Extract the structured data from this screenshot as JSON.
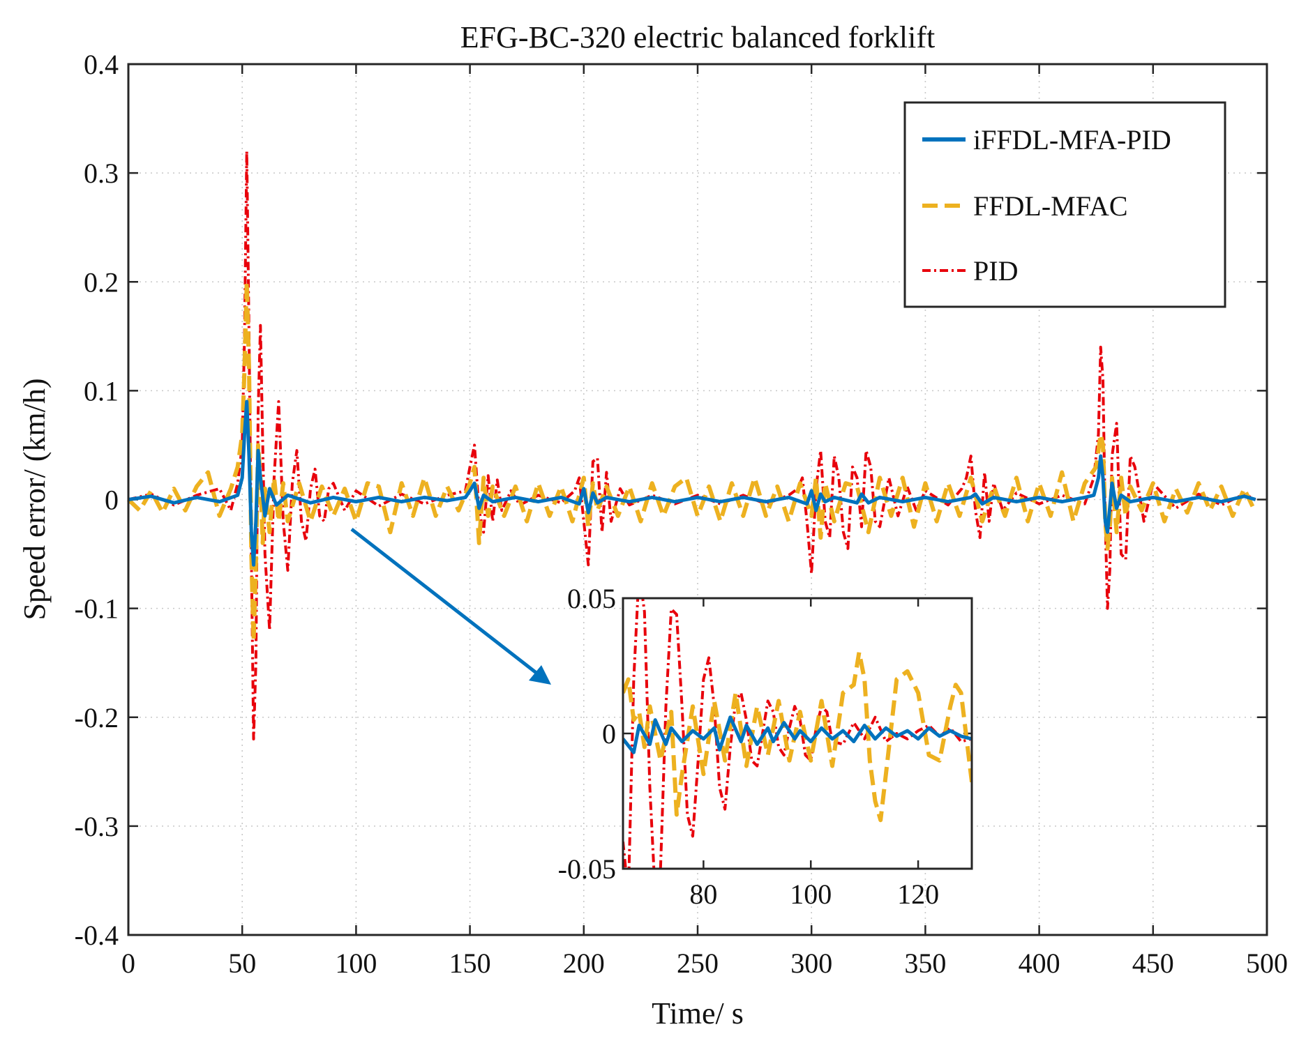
{
  "chart_data": {
    "type": "line",
    "title": "EFG-BC-320 electric balanced forklift",
    "xlabel": "Time/ s",
    "ylabel": "Speed error/ (km/h)",
    "xlim": [
      0,
      500
    ],
    "ylim": [
      -0.4,
      0.4
    ],
    "xticks": [
      0,
      50,
      100,
      150,
      200,
      250,
      300,
      350,
      400,
      450,
      500
    ],
    "xtick_labels": [
      "0",
      "50",
      "100",
      "150",
      "200",
      "250",
      "300",
      "350",
      "400",
      "450",
      "500"
    ],
    "yticks": [
      0.4,
      0.3,
      0.2,
      0.1,
      0,
      -0.1,
      -0.2,
      -0.3,
      -0.4
    ],
    "ytick_labels": [
      "0.4",
      "0.3",
      "0.2",
      "0.1",
      "0",
      "-0.1",
      "-0.2",
      "-0.3",
      "-0.4"
    ],
    "grid": true,
    "legend_position": "top-right",
    "series": [
      {
        "name": "iFFDL-MFA-PID",
        "color": "#0072BD",
        "style": "solid",
        "x": [
          0,
          10,
          20,
          30,
          40,
          48,
          50,
          51,
          52,
          53,
          54,
          55,
          56,
          57,
          58,
          60,
          62,
          65,
          70,
          80,
          90,
          100,
          110,
          120,
          130,
          140,
          148,
          150,
          152,
          154,
          156,
          160,
          170,
          180,
          190,
          198,
          200,
          202,
          204,
          206,
          210,
          220,
          230,
          240,
          250,
          260,
          270,
          280,
          290,
          298,
          300,
          302,
          304,
          306,
          310,
          320,
          322,
          325,
          330,
          340,
          350,
          360,
          370,
          372,
          375,
          380,
          390,
          400,
          410,
          420,
          424,
          426,
          427,
          428,
          429,
          430,
          432,
          434,
          436,
          440,
          450,
          460,
          470,
          480,
          490,
          495
        ],
        "y": [
          0,
          0.003,
          -0.003,
          0.002,
          -0.002,
          0.004,
          0.02,
          0.06,
          0.09,
          0.04,
          -0.03,
          -0.06,
          -0.02,
          0.045,
          0.02,
          -0.015,
          0.01,
          -0.005,
          0.004,
          -0.003,
          0.002,
          -0.002,
          0.002,
          -0.002,
          0.002,
          -0.001,
          0.002,
          0.008,
          0.015,
          -0.008,
          0.004,
          -0.002,
          0.002,
          -0.002,
          0.002,
          -0.004,
          0.01,
          -0.012,
          0.006,
          -0.003,
          0.002,
          -0.002,
          0.002,
          -0.002,
          0.002,
          -0.002,
          0.002,
          -0.002,
          0.002,
          -0.004,
          0.008,
          -0.01,
          0.005,
          -0.002,
          0.002,
          -0.003,
          0.005,
          -0.003,
          0.002,
          -0.002,
          0.002,
          -0.002,
          0.002,
          0.005,
          -0.004,
          0.002,
          -0.002,
          0.002,
          -0.002,
          0.002,
          0.004,
          0.02,
          0.04,
          0.02,
          -0.02,
          -0.03,
          0.015,
          -0.008,
          0.004,
          -0.002,
          0.002,
          -0.002,
          0.002,
          -0.002,
          0.003,
          0
        ]
      },
      {
        "name": "FFDL-MFAC",
        "color": "#EDB120",
        "style": "dashed",
        "x": [
          0,
          5,
          10,
          15,
          20,
          25,
          30,
          35,
          40,
          45,
          48,
          50,
          51,
          52,
          53,
          54,
          55,
          56,
          57,
          58,
          59,
          60,
          62,
          64,
          66,
          68,
          70,
          75,
          80,
          85,
          90,
          95,
          100,
          105,
          110,
          115,
          120,
          125,
          130,
          135,
          140,
          145,
          150,
          152,
          154,
          156,
          158,
          160,
          165,
          170,
          175,
          180,
          185,
          190,
          195,
          200,
          202,
          204,
          206,
          210,
          215,
          220,
          225,
          230,
          235,
          240,
          245,
          250,
          255,
          260,
          265,
          270,
          275,
          280,
          285,
          290,
          295,
          300,
          302,
          304,
          306,
          310,
          315,
          320,
          325,
          330,
          335,
          340,
          345,
          350,
          355,
          360,
          365,
          370,
          375,
          380,
          385,
          390,
          395,
          400,
          405,
          410,
          415,
          420,
          425,
          427,
          428,
          429,
          430,
          431,
          432,
          434,
          436,
          438,
          440,
          445,
          450,
          455,
          460,
          465,
          470,
          475,
          480,
          485,
          490,
          495
        ],
        "y": [
          0,
          -0.01,
          0.008,
          -0.012,
          0.01,
          -0.01,
          0.012,
          0.025,
          -0.015,
          0.01,
          0.03,
          0.06,
          0.12,
          0.2,
          0.12,
          -0.05,
          -0.13,
          -0.06,
          0.05,
          0.02,
          -0.04,
          0.01,
          -0.03,
          0.02,
          -0.02,
          0.015,
          -0.02,
          0.015,
          -0.02,
          0.012,
          -0.015,
          0.01,
          -0.02,
          0.015,
          0.012,
          -0.03,
          0.015,
          -0.015,
          0.02,
          -0.015,
          0.012,
          -0.01,
          0.015,
          0.03,
          -0.04,
          0.02,
          -0.015,
          0.012,
          -0.015,
          0.012,
          -0.02,
          0.015,
          -0.015,
          0.012,
          -0.02,
          0.02,
          -0.025,
          0.015,
          -0.01,
          0.012,
          -0.015,
          0.012,
          -0.02,
          0.015,
          -0.015,
          0.012,
          0.02,
          -0.015,
          0.012,
          -0.02,
          0.015,
          -0.015,
          0.02,
          -0.015,
          0.012,
          -0.02,
          0.015,
          -0.015,
          0.02,
          -0.035,
          0.015,
          -0.02,
          0.015,
          0.012,
          -0.03,
          0.02,
          -0.015,
          0.02,
          -0.025,
          0.015,
          -0.02,
          0.015,
          -0.015,
          0.02,
          -0.02,
          0.012,
          -0.015,
          0.02,
          -0.02,
          0.015,
          -0.015,
          0.025,
          -0.02,
          0.015,
          0.03,
          0.06,
          0.05,
          -0.02,
          -0.045,
          -0.025,
          0.02,
          -0.03,
          0.02,
          -0.015,
          0.012,
          -0.01,
          0.015,
          -0.02,
          0.01,
          -0.012,
          0.015,
          -0.01,
          0.012,
          -0.015,
          0.01,
          -0.012
        ]
      },
      {
        "name": "PID",
        "color": "#E8000B",
        "style": "dash-dot",
        "x": [
          0,
          10,
          20,
          30,
          40,
          45,
          48,
          50,
          51,
          52,
          53,
          54,
          55,
          56,
          57,
          58,
          59,
          60,
          62,
          64,
          66,
          68,
          70,
          72,
          74,
          76,
          78,
          80,
          82,
          84,
          86,
          88,
          90,
          95,
          100,
          110,
          120,
          130,
          140,
          148,
          150,
          152,
          154,
          156,
          158,
          160,
          162,
          164,
          168,
          172,
          180,
          190,
          196,
          198,
          200,
          202,
          204,
          206,
          208,
          210,
          212,
          216,
          220,
          230,
          240,
          250,
          260,
          270,
          280,
          290,
          294,
          296,
          298,
          300,
          302,
          304,
          306,
          308,
          310,
          312,
          314,
          316,
          318,
          320,
          322,
          324,
          326,
          328,
          330,
          334,
          338,
          342,
          346,
          350,
          360,
          366,
          368,
          370,
          372,
          374,
          376,
          378,
          380,
          384,
          390,
          400,
          410,
          420,
          424,
          426,
          427,
          428,
          429,
          430,
          431,
          432,
          434,
          436,
          438,
          440,
          442,
          446,
          450,
          460,
          470,
          480,
          490,
          495
        ],
        "y": [
          0,
          0.005,
          -0.005,
          0.004,
          0.01,
          -0.01,
          0.015,
          0.05,
          0.15,
          0.32,
          0.15,
          -0.05,
          -0.22,
          -0.15,
          0.08,
          0.16,
          0.05,
          -0.05,
          -0.12,
          0.02,
          0.09,
          -0.02,
          -0.065,
          0.015,
          0.045,
          -0.02,
          -0.038,
          0.01,
          0.028,
          -0.015,
          -0.02,
          0.01,
          0.015,
          -0.01,
          0.008,
          -0.006,
          0.005,
          -0.004,
          0.004,
          0.008,
          0.03,
          0.05,
          -0.01,
          -0.03,
          0.022,
          -0.02,
          0.018,
          -0.01,
          0.008,
          -0.005,
          0.004,
          -0.003,
          0.008,
          0.02,
          -0.02,
          -0.06,
          0.035,
          0.038,
          -0.03,
          0.025,
          -0.02,
          0.01,
          -0.005,
          0.004,
          -0.004,
          0.004,
          -0.004,
          0.004,
          -0.004,
          0.004,
          0.01,
          0.02,
          -0.02,
          -0.068,
          0.01,
          0.045,
          -0.02,
          -0.035,
          0.04,
          0.02,
          -0.03,
          -0.045,
          0.03,
          0.02,
          -0.025,
          0.045,
          0.03,
          -0.02,
          -0.025,
          0.02,
          -0.015,
          0.012,
          -0.01,
          0.008,
          -0.005,
          0.01,
          0.02,
          0.04,
          -0.01,
          -0.035,
          0.025,
          -0.02,
          0.015,
          -0.01,
          0.006,
          -0.004,
          0.004,
          -0.004,
          0.02,
          0.06,
          0.14,
          0.11,
          -0.02,
          -0.1,
          -0.065,
          0.04,
          0.07,
          -0.05,
          -0.055,
          0.04,
          0.03,
          -0.02,
          0.015,
          -0.008,
          0.005,
          -0.005,
          0.005,
          0
        ]
      }
    ],
    "inset": {
      "xlim": [
        65,
        130
      ],
      "ylim": [
        -0.05,
        0.05
      ],
      "xticks": [
        80,
        100,
        120
      ],
      "xtick_labels": [
        "80",
        "100",
        "120"
      ],
      "yticks": [
        0.05,
        0,
        -0.05
      ],
      "ytick_labels": [
        "0.05",
        "0",
        "-0.05"
      ],
      "series": [
        {
          "name": "iFFDL-MFA-PID",
          "x": [
            65,
            67,
            68,
            70,
            71,
            73,
            74,
            76,
            78,
            80,
            82,
            83,
            85,
            87,
            88,
            90,
            92,
            93,
            95,
            97,
            98,
            100,
            102,
            104,
            106,
            108,
            110,
            112,
            114,
            116,
            118,
            120,
            122,
            124,
            126,
            128,
            130
          ],
          "y": [
            -0.002,
            -0.007,
            0.003,
            -0.004,
            0.005,
            -0.004,
            0.002,
            -0.003,
            0.001,
            -0.002,
            0.002,
            -0.006,
            0.006,
            -0.003,
            0.003,
            -0.004,
            0.002,
            -0.003,
            0.004,
            -0.002,
            0.001,
            -0.003,
            0.002,
            -0.002,
            0.001,
            -0.003,
            0.003,
            -0.002,
            0.002,
            -0.001,
            0.001,
            -0.002,
            0.002,
            -0.001,
            0.001,
            -0.001,
            -0.002
          ]
        },
        {
          "name": "FFDL-MFAC",
          "x": [
            65,
            66,
            67,
            68,
            69,
            70,
            72,
            74,
            75,
            76,
            78,
            80,
            82,
            84,
            86,
            88,
            90,
            92,
            94,
            96,
            98,
            100,
            102,
            104,
            106,
            108,
            109,
            110,
            111,
            112,
            113,
            114,
            116,
            118,
            120,
            122,
            124,
            126,
            127,
            128,
            130
          ],
          "y": [
            0.015,
            0.02,
            0.005,
            0.008,
            -0.005,
            0.01,
            -0.01,
            0.008,
            -0.03,
            -0.015,
            0.01,
            -0.015,
            0.012,
            -0.01,
            0.015,
            -0.012,
            0.01,
            -0.008,
            0.012,
            -0.01,
            0.008,
            -0.01,
            0.012,
            -0.012,
            0.015,
            0.018,
            0.03,
            0.02,
            -0.01,
            -0.025,
            -0.032,
            -0.015,
            0.02,
            0.023,
            0.015,
            -0.008,
            -0.01,
            0.01,
            0.018,
            0.015,
            -0.018
          ]
        },
        {
          "name": "PID",
          "x": [
            65,
            66,
            67,
            68,
            69,
            70,
            71,
            72,
            73,
            74,
            75,
            76,
            77,
            78,
            79,
            80,
            81,
            82,
            83,
            84,
            85,
            86,
            87,
            88,
            89,
            90,
            91,
            92,
            93,
            94,
            95,
            96,
            97,
            98,
            99,
            100,
            101,
            102,
            103,
            104,
            106,
            108,
            110,
            112,
            114,
            116,
            118,
            120,
            122,
            124,
            126,
            128,
            130
          ],
          "y": [
            -0.04,
            -0.06,
            0.02,
            0.06,
            0.045,
            -0.02,
            -0.06,
            -0.05,
            0.01,
            0.046,
            0.044,
            0.01,
            -0.03,
            -0.038,
            -0.01,
            0.02,
            0.028,
            0.01,
            -0.02,
            -0.028,
            -0.005,
            0.012,
            0.015,
            0.005,
            -0.01,
            -0.012,
            0.0,
            0.012,
            0.008,
            -0.005,
            -0.008,
            0.002,
            0.01,
            0.005,
            -0.008,
            -0.01,
            0.002,
            0.01,
            0.008,
            -0.003,
            -0.004,
            0.004,
            -0.002,
            0.006,
            -0.003,
            0.0,
            -0.002,
            0.001,
            0.003,
            -0.001,
            0.002,
            -0.003,
            -0.002
          ]
        }
      ]
    }
  }
}
